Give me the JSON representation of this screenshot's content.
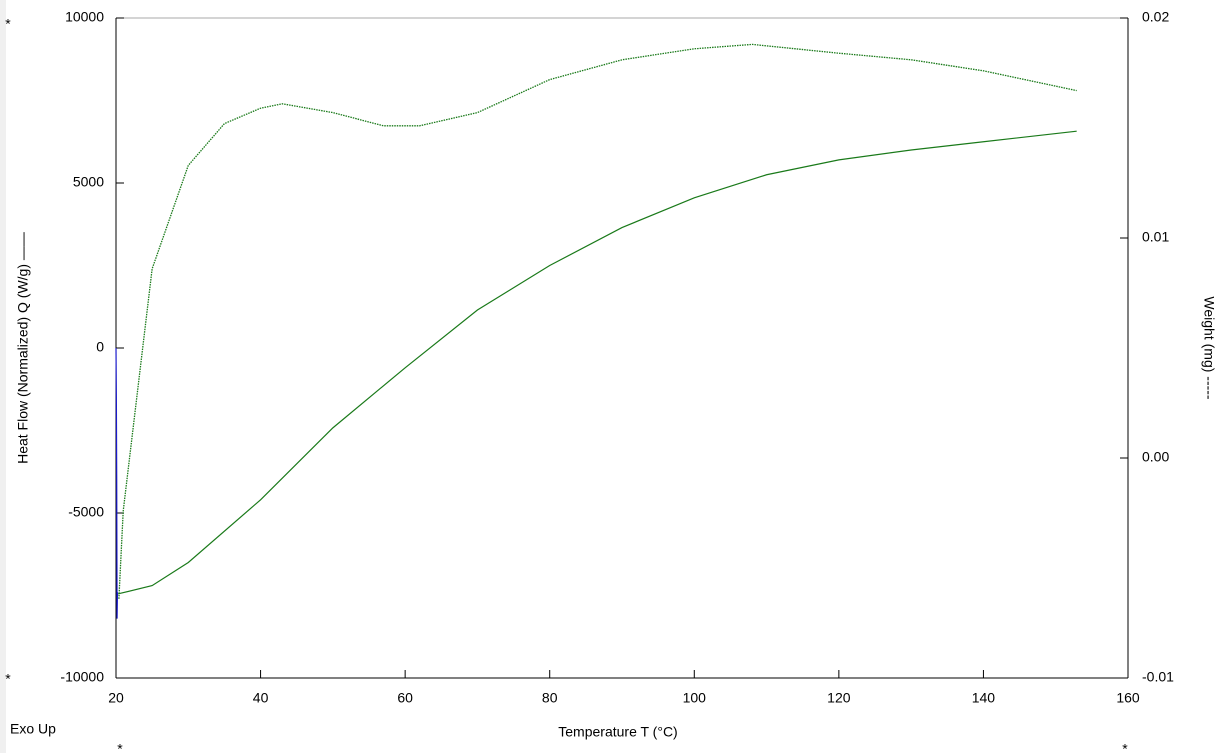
{
  "chart_data": {
    "type": "line",
    "xlabel": "Temperature T (°C)",
    "ylabel": "Heat Flow (Normalized) Q (W/g) ——",
    "y2label": "Weight (mg) -----",
    "annotations": [
      "Exo Up",
      "*",
      "*",
      "*",
      "*"
    ],
    "xlim": [
      20,
      160
    ],
    "xticks": [
      20,
      40,
      60,
      80,
      100,
      120,
      140,
      160
    ],
    "ylim": [
      -10000,
      10000
    ],
    "yticks": [
      -10000,
      -5000,
      0,
      5000,
      10000
    ],
    "y2lim": [
      -0.01,
      0.02
    ],
    "y2ticks": [
      -0.01,
      {
        "value": 0,
        "label": "0.00"
      },
      0.01,
      0.02
    ],
    "series": [
      {
        "color": "#1a7a1a",
        "style": "solid",
        "x": [
          20.3,
          25,
          30,
          40,
          50,
          60,
          70,
          80,
          90,
          100,
          110,
          120,
          130,
          140,
          152.9
        ],
        "values": [
          -7450,
          -7200,
          -6500,
          -4600,
          -2420,
          -600,
          1150,
          2500,
          3650,
          4550,
          5250,
          5700,
          6000,
          6250,
          6570
        ]
      },
      {
        "color": "#1a7a1a",
        "style": "dotted",
        "axis": "y2",
        "x": [
          20.4,
          21,
          23,
          25,
          30,
          35,
          40,
          43,
          50,
          57,
          62,
          70,
          80,
          90,
          100,
          108,
          120,
          130,
          140,
          152.9
        ],
        "values": [
          -0.0064,
          -0.0024,
          0.0031,
          0.0086,
          0.0133,
          0.0152,
          0.0159,
          0.0161,
          0.0157,
          0.0151,
          0.0151,
          0.0157,
          0.0172,
          0.0181,
          0.0186,
          0.0188,
          0.0184,
          0.0181,
          0.0176,
          0.0167
        ]
      },
      {
        "color": "#1a1acc",
        "style": "solid",
        "x": [
          20.0,
          20.05,
          20.1,
          20.15,
          20.2
        ],
        "values": [
          0,
          -1500,
          -4000,
          -8200,
          -7400
        ]
      }
    ]
  }
}
